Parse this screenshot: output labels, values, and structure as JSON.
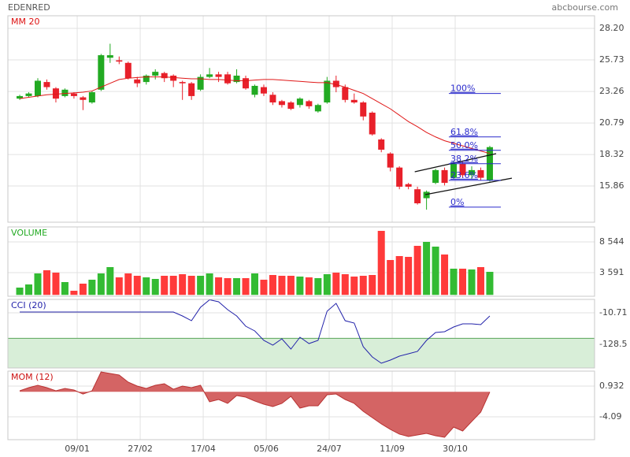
{
  "header": {
    "symbol": "EDENRED",
    "source": "abcbourse.com"
  },
  "x_axis": {
    "xlim": [
      -1.31,
      63.59
    ],
    "xticks": [
      {
        "value": 6.36,
        "label": "09/01"
      },
      {
        "value": 13.33,
        "label": "27/02"
      },
      {
        "value": 20.3,
        "label": "17/04"
      },
      {
        "value": 27.27,
        "label": "05/06"
      },
      {
        "value": 34.23,
        "label": "24/07"
      },
      {
        "value": 41.2,
        "label": "11/09"
      },
      {
        "value": 48.17,
        "label": "30/10"
      }
    ]
  },
  "chart_data": [
    {
      "type": "candlestick",
      "title": "MM 20",
      "title_color": "#dd1111",
      "up_color": "#22aa22",
      "down_color": "#e8202a",
      "ylim": [
        13.02,
        29.19
      ],
      "yticks": [
        {
          "value": 28.2,
          "label": "28.20"
        },
        25.73,
        23.26,
        20.79,
        18.32,
        15.86
      ],
      "open": [
        22.7,
        22.9,
        22.9,
        24.0,
        23.5,
        22.9,
        23.1,
        22.8,
        22.4,
        23.4,
        25.9,
        25.7,
        25.5,
        24.2,
        24.0,
        24.5,
        24.7,
        24.5,
        24.0,
        23.9,
        23.4,
        24.4,
        24.6,
        24.6,
        24.0,
        24.3,
        23.0,
        23.6,
        23.0,
        22.5,
        22.4,
        22.2,
        22.5,
        21.7,
        22.4,
        24.1,
        23.6,
        22.6,
        22.4,
        21.6,
        19.5,
        18.4,
        17.3,
        16.0,
        15.6,
        14.9,
        16.1,
        17.1,
        16.5,
        17.6,
        16.7,
        17.1,
        16.3
      ],
      "high": [
        23.0,
        23.2,
        24.3,
        24.2,
        23.6,
        23.5,
        23.2,
        22.9,
        23.3,
        26.2,
        27.0,
        26.0,
        25.6,
        24.4,
        24.6,
        25.0,
        24.8,
        24.6,
        24.1,
        24.0,
        24.6,
        25.1,
        24.8,
        24.8,
        25.0,
        24.5,
        23.8,
        23.8,
        23.2,
        22.6,
        22.5,
        22.8,
        22.6,
        22.3,
        24.4,
        24.5,
        23.8,
        23.1,
        22.5,
        21.7,
        19.6,
        18.5,
        17.4,
        16.1,
        15.8,
        15.5,
        17.2,
        17.3,
        17.8,
        17.8,
        17.4,
        17.3,
        19.0
      ],
      "low": [
        22.6,
        22.8,
        22.8,
        23.4,
        22.4,
        22.8,
        22.7,
        21.8,
        22.3,
        23.3,
        25.5,
        25.4,
        24.2,
        23.6,
        23.8,
        24.2,
        24.0,
        23.6,
        22.6,
        22.6,
        23.3,
        24.3,
        24.0,
        23.8,
        23.9,
        23.4,
        22.8,
        22.9,
        22.2,
        22.0,
        21.8,
        22.0,
        21.9,
        21.6,
        22.3,
        23.2,
        22.4,
        22.3,
        21.0,
        19.8,
        18.5,
        17.0,
        15.6,
        15.6,
        14.4,
        14.0,
        16.0,
        15.9,
        16.4,
        16.5,
        16.4,
        16.3,
        16.2
      ],
      "close": [
        22.9,
        23.1,
        24.1,
        23.6,
        22.7,
        23.4,
        22.9,
        22.6,
        23.2,
        26.1,
        26.1,
        25.6,
        24.3,
        23.9,
        24.5,
        24.8,
        24.3,
        24.1,
        23.9,
        22.9,
        24.4,
        24.6,
        24.4,
        23.9,
        24.5,
        23.5,
        23.7,
        23.1,
        22.4,
        22.2,
        21.9,
        22.7,
        22.1,
        22.2,
        24.1,
        23.6,
        22.6,
        22.4,
        21.3,
        19.9,
        18.7,
        17.3,
        15.8,
        15.8,
        14.5,
        15.4,
        17.1,
        16.1,
        17.6,
        16.7,
        17.1,
        16.5,
        18.9
      ],
      "overlay": {
        "color": "#e01818",
        "values": [
          22.7,
          22.8,
          22.9,
          23.0,
          23.05,
          23.1,
          23.15,
          23.2,
          23.3,
          23.6,
          23.9,
          24.2,
          24.3,
          24.35,
          24.4,
          24.4,
          24.4,
          24.35,
          24.3,
          24.25,
          24.25,
          24.2,
          24.2,
          24.15,
          24.1,
          24.1,
          24.15,
          24.2,
          24.2,
          24.15,
          24.1,
          24.05,
          24.0,
          23.95,
          23.95,
          23.8,
          23.6,
          23.35,
          23.1,
          22.7,
          22.3,
          21.9,
          21.4,
          20.9,
          20.5,
          20.05,
          19.7,
          19.4,
          19.2,
          19.0,
          18.8,
          18.6,
          18.4
        ]
      },
      "fibonacci": {
        "color": "#2a2acc",
        "x_range": [
          47.47,
          53.22
        ],
        "levels": [
          {
            "name": "100%",
            "price": 23.1
          },
          {
            "name": "61.8%",
            "price": 19.7
          },
          {
            "name": "50.0%",
            "price": 18.65
          },
          {
            "name": "38.2%",
            "price": 17.6
          },
          {
            "name": "23.6%",
            "price": 16.3
          },
          {
            "name": "0%",
            "price": 14.2
          }
        ]
      },
      "trendlines": [
        {
          "x": [
            43.7,
            52.7
          ],
          "y": [
            16.97,
            18.39
          ]
        },
        {
          "x": [
            44.86,
            54.44
          ],
          "y": [
            15.18,
            16.47
          ]
        }
      ]
    },
    {
      "type": "bar",
      "title": "VOLUME",
      "title_color": "#22aa22",
      "up_color": "#33bb33",
      "down_color": "#ff3a3a",
      "ylim": [
        -219,
        10957
      ],
      "yticks": [
        {
          "value": 8544,
          "label": "8 544"
        },
        {
          "value": 3591,
          "label": "3 591"
        }
      ],
      "values": [
        1178,
        1686,
        3464,
        3972,
        3591,
        2067,
        670,
        1813,
        2448,
        3464,
        4480,
        2829,
        3464,
        3083,
        2829,
        2575,
        3083,
        3083,
        3337,
        3083,
        3083,
        3464,
        2829,
        2702,
        2702,
        2702,
        3464,
        2448,
        3210,
        3083,
        3083,
        2956,
        2829,
        2702,
        3337,
        3591,
        3337,
        2956,
        3083,
        3210,
        10322,
        5623,
        6258,
        6131,
        7909,
        8544,
        7782,
        6512,
        4226,
        4226,
        4099,
        4480,
        3718
      ]
    },
    {
      "type": "line",
      "title": "CCI (20)",
      "title_color": "#2222aa",
      "color": "#2222aa",
      "zone": [
        -216.9,
        -106
      ],
      "zone_color": "#d8eed8",
      "zone_edge": "#5aa55a",
      "ylim": [
        -216.9,
        39.4
      ],
      "yticks": [
        -10.71,
        -128.5
      ],
      "values": [
        -7.8,
        -7.8,
        -7.8,
        -7.8,
        -7.8,
        -7.8,
        -7.8,
        -7.8,
        -7.8,
        -7.8,
        -7.8,
        -7.8,
        -7.8,
        -7.8,
        -7.8,
        -7.8,
        -7.8,
        -7.8,
        -22.5,
        -40.2,
        9.9,
        38,
        30.5,
        1.1,
        -22.5,
        -60.8,
        -78.4,
        -113.8,
        -131.5,
        -107.9,
        -146.2,
        -102,
        -125.6,
        -113.8,
        -4.8,
        24.6,
        -40.2,
        -49,
        -137.3,
        -175.6,
        -199.2,
        -187.4,
        -172.7,
        -163.9,
        -155,
        -113.8,
        -84.3,
        -81.4,
        -63.7,
        -52,
        -52,
        -55,
        -22.5
      ]
    },
    {
      "type": "area",
      "title": "MOM (12)",
      "title_color": "#cc1111",
      "color": "#b83232",
      "fill": "#d46464",
      "ylim": [
        -7.83,
        3.38
      ],
      "yticks": [
        0.932,
        -4.09
      ],
      "values": [
        0.16,
        0.67,
        1.06,
        0.67,
        0.16,
        0.55,
        0.29,
        -0.36,
        0.16,
        3.25,
        2.99,
        2.74,
        1.58,
        0.93,
        0.55,
        1.06,
        1.32,
        0.42,
        0.93,
        0.67,
        1.06,
        -1.64,
        -1.26,
        -1.9,
        -0.61,
        -0.87,
        -1.51,
        -2.03,
        -2.42,
        -1.9,
        -0.74,
        -2.67,
        -2.29,
        -2.29,
        -0.49,
        -0.36,
        -1.26,
        -1.9,
        -3.19,
        -4.22,
        -5.25,
        -6.15,
        -6.92,
        -7.31,
        -7.05,
        -6.8,
        -7.18,
        -7.44,
        -5.77,
        -6.41,
        -4.86,
        -3.32,
        -0.04
      ]
    }
  ]
}
